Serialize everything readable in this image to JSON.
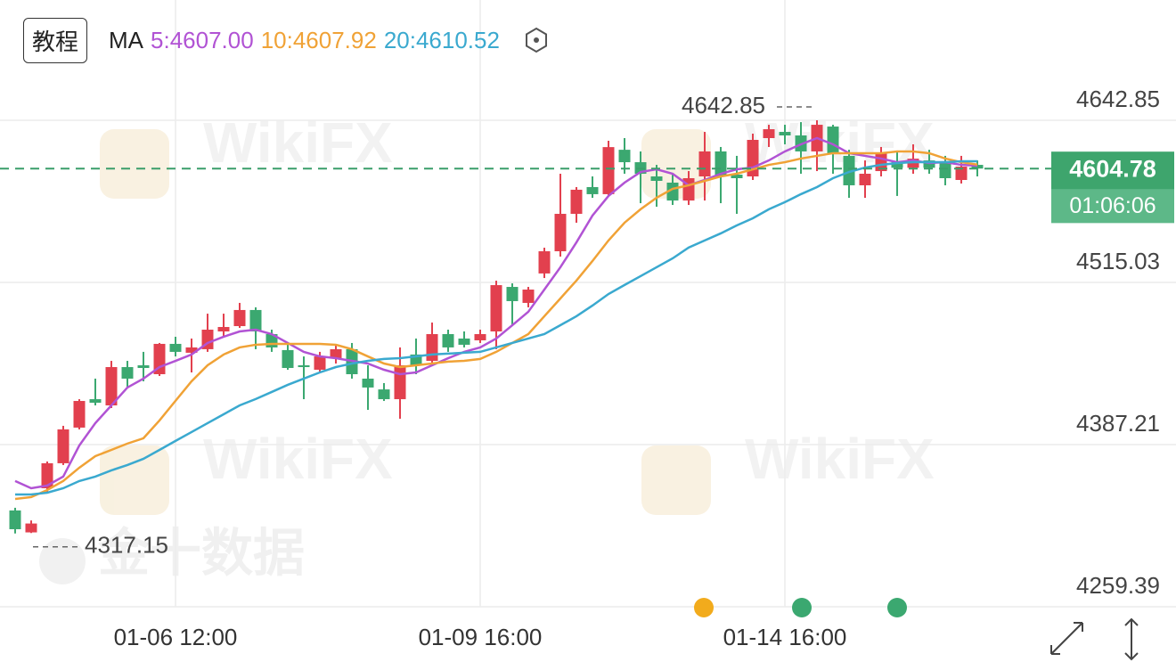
{
  "chart_data": {
    "type": "candlestick",
    "tutorial_button": "教程",
    "legend_title": "MA",
    "watermarks": [
      "WikiFX",
      "金十数据"
    ],
    "up_color": "#e2404e",
    "down_color": "#3ba870",
    "categories": [
      null,
      null,
      null,
      null,
      null,
      null,
      null,
      null,
      null,
      null,
      "01-06 12:00",
      null,
      null,
      null,
      null,
      null,
      null,
      null,
      null,
      null,
      null,
      null,
      null,
      null,
      null,
      null,
      null,
      null,
      null,
      "01-09 16:00",
      null,
      null,
      null,
      null,
      null,
      null,
      null,
      null,
      null,
      null,
      null,
      null,
      null,
      null,
      null,
      null,
      null,
      null,
      "01-14 16:00",
      null,
      null,
      null,
      null,
      null,
      null,
      null,
      null,
      null,
      null,
      null,
      null
    ],
    "ohlc": [
      [
        4335.3,
        4337.4,
        4317.15,
        4320.5
      ],
      [
        4318.0,
        4327.4,
        4317.5,
        4325.0
      ],
      [
        4352.8,
        4373.9,
        4350.0,
        4372.5
      ],
      [
        4372.5,
        4402.0,
        4371.1,
        4399.2
      ],
      [
        4400.6,
        4423.0,
        4399.2,
        4421.6
      ],
      [
        4423.0,
        4439.2,
        4418.1,
        4420.2
      ],
      [
        4418.1,
        4453.2,
        4416.0,
        4448.3
      ],
      [
        4448.3,
        4453.2,
        4432.2,
        4439.2
      ],
      [
        4449.7,
        4460.3,
        4437.1,
        4447.6
      ],
      [
        4442.7,
        4467.3,
        4441.3,
        4466.6
      ],
      [
        4466.6,
        4472.2,
        4456.7,
        4460.3
      ],
      [
        4459.6,
        4470.8,
        4444.1,
        4463.8
      ],
      [
        4462.4,
        4490.4,
        4460.3,
        4477.8
      ],
      [
        4476.4,
        4490.4,
        4472.2,
        4479.9
      ],
      [
        4480.6,
        4498.9,
        4479.2,
        4493.3
      ],
      [
        4493.3,
        4495.4,
        4462.4,
        4476.4
      ],
      [
        4474.3,
        4477.8,
        4460.3,
        4463.8
      ],
      [
        4461.7,
        4467.3,
        4446.2,
        4447.6
      ],
      [
        4449.7,
        4456.7,
        4423.0,
        4448.3
      ],
      [
        4446.2,
        4460.3,
        4444.1,
        4456.7
      ],
      [
        4455.3,
        4465.2,
        4451.1,
        4462.4
      ],
      [
        4462.4,
        4467.3,
        4439.2,
        4442.7
      ],
      [
        4439.2,
        4449.7,
        4414.6,
        4432.2
      ],
      [
        4430.7,
        4435.7,
        4421.6,
        4423.0
      ],
      [
        4423.0,
        4463.8,
        4407.6,
        4449.7
      ],
      [
        4458.2,
        4470.8,
        4442.7,
        4449.7
      ],
      [
        4453.2,
        4483.4,
        4451.1,
        4474.3
      ],
      [
        4474.3,
        4477.8,
        4460.3,
        4463.8
      ],
      [
        4470.8,
        4476.4,
        4463.8,
        4465.9
      ],
      [
        4469.4,
        4477.8,
        4467.3,
        4474.3
      ],
      [
        4476.4,
        4516.4,
        4462.4,
        4512.9
      ],
      [
        4511.5,
        4514.3,
        4481.3,
        4500.3
      ],
      [
        4498.9,
        4511.5,
        4495.4,
        4509.4
      ],
      [
        4522.1,
        4542.4,
        4518.5,
        4539.6
      ],
      [
        4539.6,
        4600.7,
        4535.4,
        4569.1
      ],
      [
        4569.1,
        4590.2,
        4562.1,
        4588.1
      ],
      [
        4590.2,
        4598.6,
        4581.7,
        4584.6
      ],
      [
        4584.6,
        4626.7,
        4583.2,
        4621.7
      ],
      [
        4619.6,
        4628.8,
        4600.7,
        4609.8
      ],
      [
        4609.8,
        4618.3,
        4577.5,
        4600.7
      ],
      [
        4598.6,
        4607.7,
        4574.7,
        4595.1
      ],
      [
        4593.7,
        4600.7,
        4576.1,
        4579.6
      ],
      [
        4579.6,
        4602.8,
        4576.1,
        4597.2
      ],
      [
        4598.6,
        4633.7,
        4579.6,
        4618.3
      ],
      [
        4618.3,
        4621.8,
        4577.5,
        4598.6
      ],
      [
        4600.0,
        4614.8,
        4569.1,
        4597.2
      ],
      [
        4598.6,
        4632.3,
        4595.8,
        4627.4
      ],
      [
        4628.8,
        4639.3,
        4621.8,
        4635.8
      ],
      [
        4633.7,
        4639.3,
        4623.9,
        4630.9
      ],
      [
        4630.9,
        4641.4,
        4600.7,
        4618.3
      ],
      [
        4618.3,
        4642.85,
        4602.8,
        4639.3
      ],
      [
        4637.9,
        4639.3,
        4600.7,
        4616.9
      ],
      [
        4614.8,
        4619.6,
        4581.7,
        4591.6
      ],
      [
        4591.6,
        4611.2,
        4581.7,
        4600.7
      ],
      [
        4602.8,
        4621.8,
        4598.6,
        4616.9
      ],
      [
        4609.8,
        4618.3,
        4583.2,
        4605.4
      ],
      [
        4605.4,
        4623.9,
        4600.7,
        4612.6
      ],
      [
        4611.2,
        4619.6,
        4600.7,
        4605.4
      ],
      [
        4609.8,
        4614.8,
        4591.6,
        4597.2
      ],
      [
        4595.8,
        4614.8,
        4593.0,
        4606.3
      ],
      [
        4607.7,
        4611.2,
        4598.6,
        4604.78
      ]
    ],
    "series": [
      {
        "name": "5:4607.00",
        "color": "#b153d4",
        "values": [
          4358.5,
          4352.8,
          4354.9,
          4362.0,
          4386.5,
          4404.1,
          4418.1,
          4432.2,
          4439.2,
          4448.3,
          4453.2,
          4458.2,
          4467.3,
          4472.2,
          4476.4,
          4477.8,
          4474.3,
          4467.3,
          4460.3,
          4456.7,
          4455.3,
          4453.2,
          4451.1,
          4446.2,
          4442.7,
          4444.1,
          4449.7,
          4455.3,
          4460.3,
          4463.8,
          4470.8,
          4481.3,
          4491.9,
          4509.4,
          4527.0,
          4546.6,
          4567.7,
          4583.2,
          4593.7,
          4602.1,
          4604.2,
          4600.7,
          4591.6,
          4595.8,
          4600.7,
          4604.2,
          4605.6,
          4611.2,
          4618.3,
          4623.9,
          4628.8,
          4623.9,
          4616.9,
          4614.8,
          4612.7,
          4609.8,
          4611.2,
          4609.1,
          4609.8,
          4607.7,
          4607.0
        ]
      },
      {
        "name": "10:4607.92",
        "color": "#f0a236",
        "values": [
          4344.4,
          4345.8,
          4351.4,
          4358.5,
          4369.0,
          4378.1,
          4383.0,
          4388.0,
          4392.2,
          4406.2,
          4421.7,
          4437.1,
          4449.7,
          4458.2,
          4463.8,
          4465.9,
          4466.6,
          4466.6,
          4466.6,
          4466.6,
          4465.9,
          4462.4,
          4456.7,
          4451.1,
          4448.3,
          4449.7,
          4451.1,
          4452.6,
          4453.2,
          4454.7,
          4460.3,
          4467.3,
          4474.3,
          4488.4,
          4502.4,
          4516.5,
          4531.9,
          4548.1,
          4562.1,
          4572.7,
          4581.8,
          4588.8,
          4591.6,
          4595.1,
          4598.6,
          4600.7,
          4604.2,
          4607.7,
          4609.8,
          4612.7,
          4614.8,
          4616.9,
          4616.9,
          4616.9,
          4616.9,
          4618.3,
          4618.3,
          4616.9,
          4612.7,
          4609.8,
          4607.92
        ]
      },
      {
        "name": "20:4610.52",
        "color": "#3aa9cf",
        "values": [
          4347.9,
          4347.9,
          4349.3,
          4352.8,
          4358.5,
          4362.0,
          4366.9,
          4371.1,
          4376.0,
          4383.0,
          4390.1,
          4397.1,
          4404.1,
          4411.1,
          4418.1,
          4423.1,
          4428.7,
          4434.3,
          4439.2,
          4444.1,
          4448.3,
          4451.1,
          4453.2,
          4454.7,
          4455.3,
          4456.7,
          4458.2,
          4458.9,
          4459.6,
          4460.3,
          4463.8,
          4467.3,
          4470.8,
          4474.3,
          4481.3,
          4488.4,
          4496.8,
          4505.9,
          4513.0,
          4520.0,
          4527.0,
          4534.0,
          4542.5,
          4548.1,
          4553.7,
          4560.0,
          4565.6,
          4572.7,
          4578.3,
          4584.6,
          4590.2,
          4597.2,
          4602.1,
          4605.6,
          4607.7,
          4609.1,
          4609.8,
          4609.8,
          4609.8,
          4610.5,
          4610.52
        ]
      }
    ],
    "ylim": [
      4259.39,
      4737.66
    ],
    "yticks": [
      4259.39,
      4387.21,
      4515.03,
      4642.85
    ],
    "grid": true,
    "last_price": 4604.78,
    "countdown": "01:06:06",
    "max_label": 4642.85,
    "min_label": 4317.15
  }
}
